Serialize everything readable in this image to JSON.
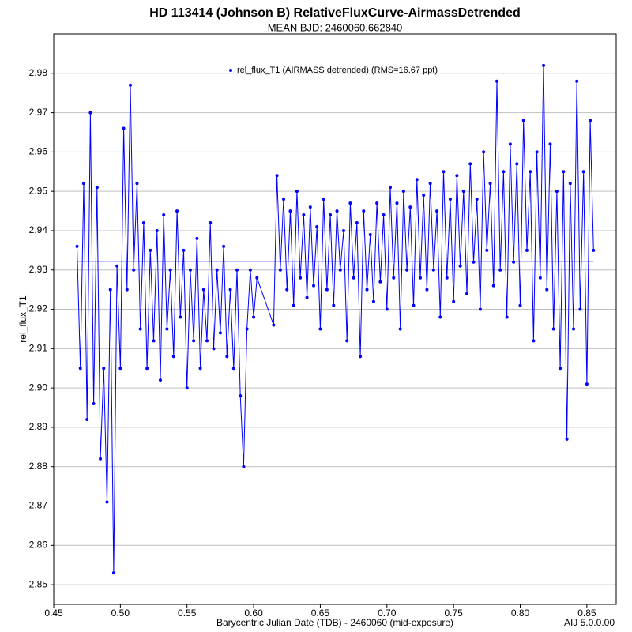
{
  "chart_data": {
    "type": "line",
    "title": "HD 113414 (Johnson B) RelativeFluxCurve-AirmassDetrended",
    "subtitle": "MEAN BJD: 2460060.662840",
    "x_label": "Barycentric Julian Date (TDB) - 2460060 (mid-exposure)",
    "y_label": "rel_flux_T1",
    "footer": "AIJ 5.0.0.00",
    "xlim": [
      0.45,
      0.872
    ],
    "ylim": [
      2.845,
      2.99
    ],
    "xticks": [
      0.45,
      {
        "value": 0.5,
        "label": "0.50"
      },
      0.55,
      {
        "value": 0.6,
        "label": "0.60"
      },
      0.65,
      {
        "value": 0.7,
        "label": "0.70"
      },
      0.75,
      {
        "value": 0.8,
        "label": "0.80"
      },
      0.85
    ],
    "yticks": [
      2.85,
      2.86,
      2.87,
      2.88,
      2.89,
      {
        "value": 2.9,
        "label": "2.90"
      },
      2.91,
      2.92,
      2.93,
      2.94,
      2.95,
      2.96,
      2.97,
      2.98
    ],
    "grid": true,
    "legend_position": "top",
    "mean_line": {
      "value": 2.9322,
      "x": [
        0.468,
        0.855
      ],
      "color": "#0000ff"
    },
    "series": [
      {
        "name": "rel_flux_T1 (AIRMASS detrended) (RMS=16.67 ppt)",
        "color": "#0000ff",
        "x": [
          0.4675,
          0.47,
          0.4725,
          0.475,
          0.4775,
          0.48,
          0.4825,
          0.485,
          0.4875,
          0.49,
          0.4925,
          0.495,
          0.4975,
          0.5,
          0.5025,
          0.505,
          0.5075,
          0.51,
          0.5125,
          0.515,
          0.5175,
          0.52,
          0.5225,
          0.525,
          0.5275,
          0.53,
          0.5325,
          0.535,
          0.5375,
          0.54,
          0.5425,
          0.545,
          0.5475,
          0.55,
          0.5525,
          0.555,
          0.5575,
          0.56,
          0.5625,
          0.565,
          0.5675,
          0.57,
          0.5725,
          0.575,
          0.5775,
          0.58,
          0.5825,
          0.585,
          0.5875,
          0.59,
          0.5925,
          0.595,
          0.5975,
          0.6,
          0.6025,
          0.615,
          0.6175,
          0.62,
          0.6225,
          0.625,
          0.6275,
          0.63,
          0.6325,
          0.635,
          0.6375,
          0.64,
          0.6425,
          0.645,
          0.6475,
          0.65,
          0.6525,
          0.655,
          0.6575,
          0.66,
          0.6625,
          0.665,
          0.6675,
          0.67,
          0.6725,
          0.675,
          0.6775,
          0.68,
          0.6825,
          0.685,
          0.6875,
          0.69,
          0.6925,
          0.695,
          0.6975,
          0.7,
          0.7025,
          0.705,
          0.7075,
          0.71,
          0.7125,
          0.715,
          0.7175,
          0.72,
          0.7225,
          0.725,
          0.7275,
          0.73,
          0.7325,
          0.735,
          0.7375,
          0.74,
          0.7425,
          0.745,
          0.7475,
          0.75,
          0.7525,
          0.755,
          0.7575,
          0.76,
          0.7625,
          0.765,
          0.7675,
          0.77,
          0.7725,
          0.775,
          0.7775,
          0.78,
          0.7825,
          0.785,
          0.7875,
          0.79,
          0.7925,
          0.795,
          0.7975,
          0.8,
          0.8025,
          0.805,
          0.8075,
          0.81,
          0.8125,
          0.815,
          0.8175,
          0.82,
          0.8225,
          0.825,
          0.8275,
          0.83,
          0.8325,
          0.835,
          0.8375,
          0.84,
          0.8425,
          0.845,
          0.8475,
          0.85,
          0.8525,
          0.855
        ],
        "values": [
          2.936,
          2.905,
          2.952,
          2.892,
          2.97,
          2.896,
          2.951,
          2.882,
          2.905,
          2.871,
          2.925,
          2.853,
          2.931,
          2.905,
          2.966,
          2.925,
          2.977,
          2.93,
          2.952,
          2.915,
          2.942,
          2.905,
          2.935,
          2.912,
          2.94,
          2.902,
          2.944,
          2.915,
          2.93,
          2.908,
          2.945,
          2.918,
          2.935,
          2.9,
          2.93,
          2.912,
          2.938,
          2.905,
          2.925,
          2.912,
          2.942,
          2.91,
          2.93,
          2.914,
          2.936,
          2.908,
          2.925,
          2.905,
          2.93,
          2.898,
          2.88,
          2.915,
          2.93,
          2.918,
          2.928,
          2.916,
          2.954,
          2.93,
          2.948,
          2.925,
          2.945,
          2.921,
          2.95,
          2.928,
          2.944,
          2.923,
          2.946,
          2.926,
          2.941,
          2.915,
          2.948,
          2.925,
          2.944,
          2.921,
          2.945,
          2.93,
          2.94,
          2.912,
          2.947,
          2.928,
          2.942,
          2.908,
          2.945,
          2.925,
          2.939,
          2.922,
          2.947,
          2.927,
          2.944,
          2.92,
          2.951,
          2.928,
          2.947,
          2.915,
          2.95,
          2.93,
          2.946,
          2.921,
          2.953,
          2.928,
          2.949,
          2.925,
          2.952,
          2.93,
          2.945,
          2.918,
          2.955,
          2.928,
          2.948,
          2.922,
          2.954,
          2.931,
          2.95,
          2.924,
          2.957,
          2.932,
          2.948,
          2.92,
          2.96,
          2.935,
          2.952,
          2.926,
          2.978,
          2.93,
          2.955,
          2.918,
          2.962,
          2.932,
          2.957,
          2.921,
          2.968,
          2.935,
          2.955,
          2.912,
          2.96,
          2.928,
          2.982,
          2.925,
          2.962,
          2.915,
          2.95,
          2.905,
          2.955,
          2.887,
          2.952,
          2.915,
          2.978,
          2.92,
          2.955,
          2.901,
          2.968,
          2.935
        ]
      }
    ]
  }
}
